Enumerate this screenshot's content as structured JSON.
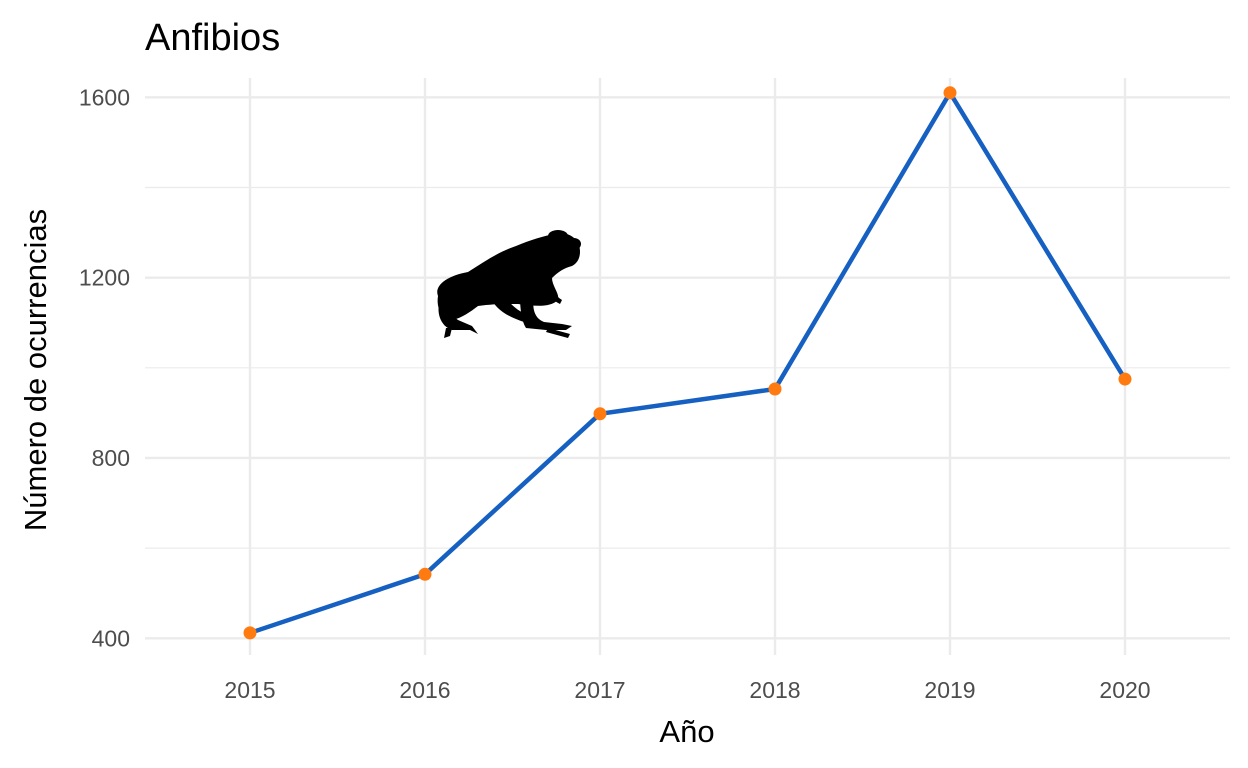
{
  "chart_data": {
    "type": "line",
    "title": "Anfibios",
    "xlabel": "Año",
    "ylabel": "Número de ocurrencias",
    "x": [
      2015,
      2016,
      2017,
      2018,
      2019,
      2020
    ],
    "x_tick_labels": [
      "2015",
      "2016",
      "2017",
      "2018",
      "2019",
      "2020"
    ],
    "y_ticks": [
      400,
      800,
      1200,
      1600
    ],
    "y_tick_labels": [
      "400",
      "800",
      "1200",
      "1600"
    ],
    "series": [
      {
        "values": [
          412,
          542,
          898,
          953,
          1610,
          975
        ]
      }
    ],
    "xlim": [
      2014.4,
      2020.6
    ],
    "ylim": [
      363,
      1665
    ],
    "grid": true,
    "legend": "none",
    "line_color": "#1660c2",
    "point_color": "#ff7a0f",
    "grid_color": "#ebebeb",
    "icon": "frog-silhouette-icon"
  }
}
